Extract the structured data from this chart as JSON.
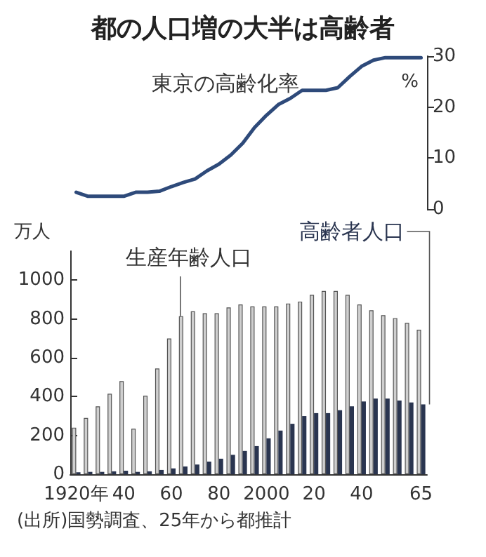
{
  "chart_data": [
    {
      "type": "line",
      "title": "都の人口増の大半は高齢者",
      "ylabel": "%",
      "annotations": [
        "東京の高齢化率"
      ],
      "categories": [
        null,
        null,
        null,
        null,
        null,
        null,
        null,
        null,
        null,
        null,
        null,
        null,
        null,
        null,
        null,
        null,
        null,
        null,
        null,
        null,
        null,
        null,
        null,
        null,
        null,
        null,
        null,
        null,
        null,
        null
      ],
      "series": [
        {
          "color": "#2e4a7a",
          "values": [
            3.3,
            2.5,
            2.5,
            2.5,
            2.5,
            3.3,
            3.3,
            3.5,
            4.4,
            5.2,
            5.9,
            7.5,
            8.8,
            10.6,
            12.9,
            16,
            18.4,
            20.5,
            21.7,
            23.3,
            23.3,
            23.3,
            23.8,
            26,
            28,
            29.2,
            29.7,
            29.7,
            29.7,
            29.7
          ]
        }
      ],
      "ylim": [
        0,
        30
      ],
      "yticks": [
        0,
        10,
        20,
        30
      ],
      "tick_labels": "y",
      "grid": false,
      "legend": false,
      "line_style": "solid"
    },
    {
      "type": "bar",
      "ylabel": "万人",
      "annotations": [
        "(出所)国勢調査、25年から都推計"
      ],
      "categories": [
        "1920年",
        null,
        null,
        null,
        "40",
        null,
        null,
        null,
        "60",
        null,
        null,
        null,
        "80",
        null,
        null,
        null,
        "2000",
        null,
        null,
        null,
        "20",
        null,
        null,
        null,
        "40",
        null,
        null,
        null,
        null,
        "65"
      ],
      "series": [
        {
          "name": "生産年齢人口",
          "color": "#cfcfcf",
          "values": [
            240,
            290,
            350,
            415,
            480,
            235,
            405,
            545,
            700,
            815,
            840,
            830,
            830,
            860,
            875,
            865,
            865,
            865,
            880,
            890,
            925,
            945,
            945,
            925,
            875,
            845,
            820,
            805,
            780,
            745
          ]
        },
        {
          "name": "高齢者人口",
          "color": "#2a3550",
          "values": [
            10,
            12,
            12,
            15,
            18,
            12,
            15,
            22,
            30,
            40,
            50,
            65,
            80,
            100,
            120,
            145,
            185,
            225,
            260,
            300,
            315,
            315,
            330,
            350,
            375,
            390,
            390,
            380,
            370,
            360
          ]
        }
      ],
      "ylim": [
        0,
        1150
      ],
      "yticks": [
        0,
        200,
        400,
        600,
        800,
        1000
      ],
      "grid": false,
      "legend": false
    }
  ]
}
